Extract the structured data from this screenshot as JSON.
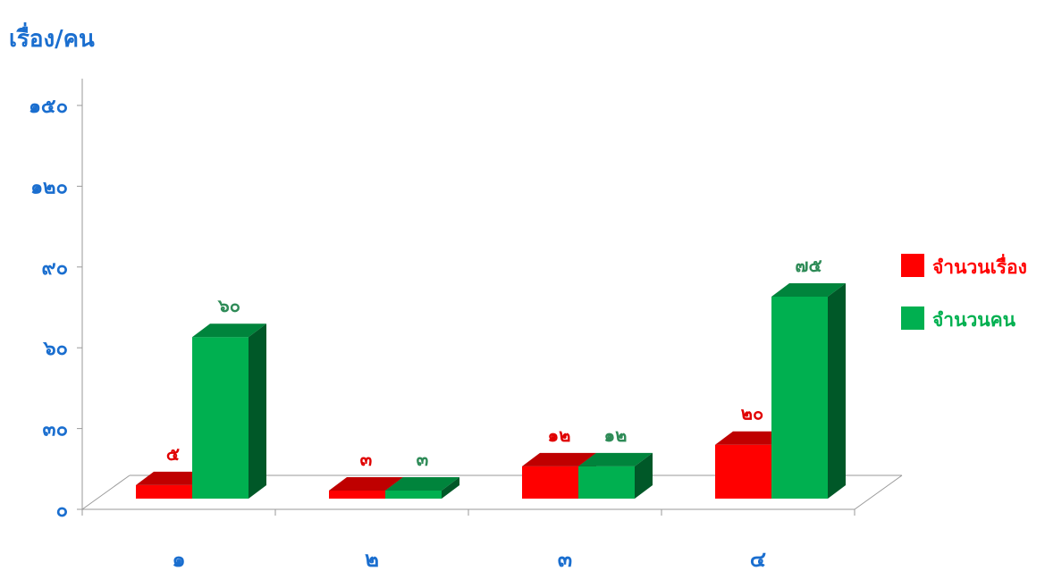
{
  "chart_data": {
    "type": "bar",
    "ylabel": "เรื่อง/คน",
    "categories": [
      "๑",
      "๒",
      "๓",
      "๔"
    ],
    "yticks": [
      "๐",
      "๓๐",
      "๖๐",
      "๙๐",
      "๑๒๐",
      "๑๕๐"
    ],
    "ylim": [
      0,
      150
    ],
    "grid": false,
    "legend_position": "right",
    "three_d": true,
    "series": [
      {
        "name": "จำนวนเรื่อง",
        "color": "#ff0000",
        "values": [
          5,
          3,
          12,
          20
        ],
        "data_labels": [
          "๕",
          "๓",
          "๑๒",
          "๒๐"
        ]
      },
      {
        "name": "จำนวนคน",
        "color": "#00b050",
        "values": [
          60,
          3,
          12,
          75
        ],
        "data_labels": [
          "๖๐",
          "๓",
          "๑๒",
          "๗๕"
        ]
      }
    ]
  }
}
